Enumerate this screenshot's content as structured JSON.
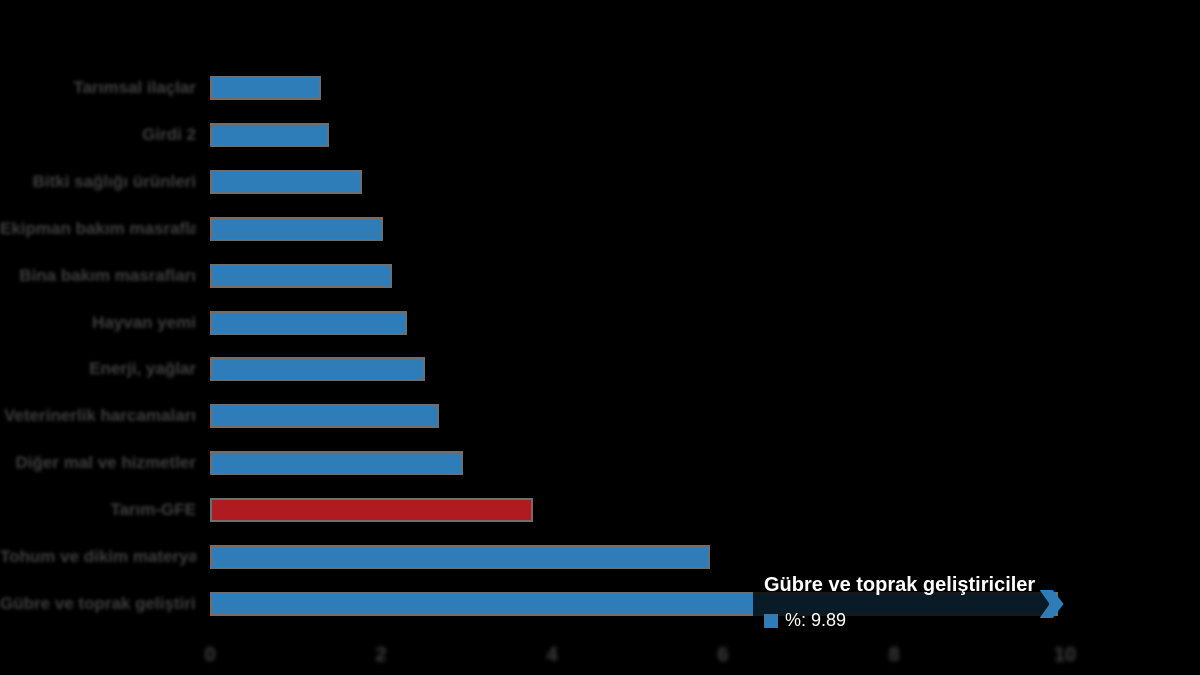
{
  "chart_data": {
    "type": "bar",
    "orientation": "horizontal",
    "title": "",
    "xlabel": "",
    "ylabel": "",
    "xlim": [
      0,
      10
    ],
    "x_ticks": [
      "0",
      "2",
      "4",
      "6",
      "8",
      "10"
    ],
    "grid": false,
    "background_color": "#000000",
    "bar_color": "#2e7cb8",
    "highlight_color": "#b01b21",
    "highlight_index": 9,
    "arrow_index": 11,
    "categories": [
      "Tarımsal ilaçlar",
      "Girdi 2",
      "Bitki sağlığı ürünleri",
      "Ekipman bakım masrafları",
      "Bina bakım masrafları",
      "Hayvan yemi",
      "Enerji, yağlar",
      "Veterinerlik harcamaları",
      "Diğer mal ve hizmetler",
      "Tarım-GFE",
      "Tohum ve dikim materyali",
      "Gübre ve toprak geliştiriciler"
    ],
    "values": [
      1.28,
      1.37,
      1.75,
      2.0,
      2.1,
      2.28,
      2.49,
      2.65,
      2.94,
      3.75,
      5.83,
      9.89
    ],
    "series_label": "%"
  },
  "tooltip": {
    "title": "Gübre ve toprak geliştiriciler",
    "value_label": "%: 9.89",
    "marker_color": "#2e7cb8"
  }
}
